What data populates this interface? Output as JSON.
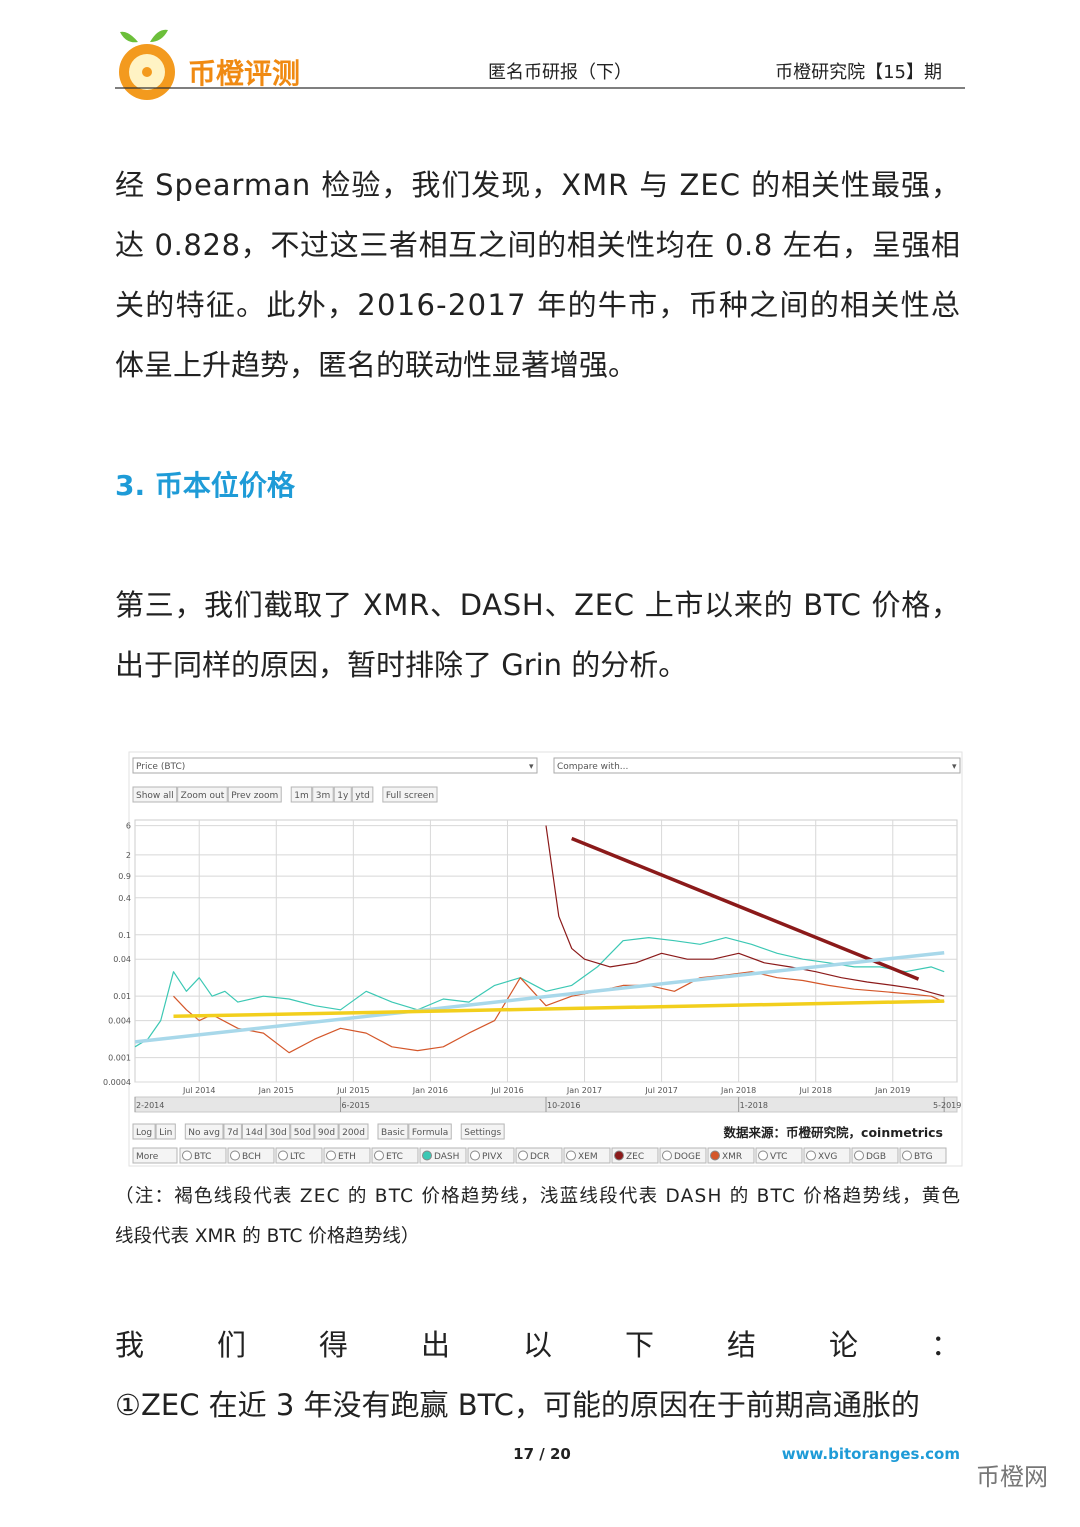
{
  "header": {
    "logo_text": "币橙评测",
    "title": "匿名币研报（下）",
    "issue": "币橙研究院【15】期"
  },
  "paragraphs": [
    [
      "经 Spearman 检验，我们发现，XMR 与 ZEC 的相关性最强，",
      "达 0.828，不过这三者相互之间的相关性均在 0.8 左右，呈强相",
      "关的特征。此外，2016-2017 年的牛市，币种之间的相关性总",
      "体呈上升趋势，匿名的联动性显著增强。"
    ],
    [
      "第三，我们截取了 XMR、DASH、ZEC 上市以来的 BTC 价格，",
      "出于同样的原因，暂时排除了 Grin 的分析。"
    ]
  ],
  "section_heading": "3.  币本位价格",
  "chart_data": {
    "type": "line",
    "log_scale": true,
    "grid": true,
    "selector": "Price (BTC)",
    "compare": "Compare with...",
    "top_buttons": [
      [
        "Show all",
        "Zoom out",
        "Prev zoom"
      ],
      [
        "1m",
        "3m",
        "1y",
        "ytd"
      ],
      [
        "Full screen"
      ]
    ],
    "bottom_buttons": [
      [
        "Log",
        "Lin"
      ],
      [
        "No avg",
        "7d",
        "14d",
        "30d",
        "50d",
        "90d",
        "200d"
      ],
      [
        "Basic",
        "Formula"
      ],
      [
        "Settings"
      ]
    ],
    "more": "More",
    "coins": [
      {
        "name": "BTC"
      },
      {
        "name": "BCH"
      },
      {
        "name": "LTC"
      },
      {
        "name": "ETH"
      },
      {
        "name": "ETC"
      },
      {
        "name": "DASH",
        "color": "#3cc8b4"
      },
      {
        "name": "PIVX"
      },
      {
        "name": "DCR"
      },
      {
        "name": "XEM"
      },
      {
        "name": "ZEC",
        "color": "#8b1a1a"
      },
      {
        "name": "DOGE"
      },
      {
        "name": "XMR",
        "color": "#d4572a"
      },
      {
        "name": "VTC"
      },
      {
        "name": "XVG"
      },
      {
        "name": "DGB"
      },
      {
        "name": "BTG"
      }
    ],
    "source": "数据来源：币橙研究院，coinmetrics",
    "xlim": [
      "2014-02",
      "2019-06"
    ],
    "xticks": [
      {
        "value": "2014-07",
        "label": "Jul 2014"
      },
      {
        "value": "2015-01",
        "label": "Jan 2015"
      },
      {
        "value": "2015-07",
        "label": "Jul 2015"
      },
      {
        "value": "2016-01",
        "label": "Jan 2016"
      },
      {
        "value": "2016-07",
        "label": "Jul 2016"
      },
      {
        "value": "2017-01",
        "label": "Jan 2017"
      },
      {
        "value": "2017-07",
        "label": "Jul 2017"
      },
      {
        "value": "2018-01",
        "label": "Jan 2018"
      },
      {
        "value": "2018-07",
        "label": "Jul 2018"
      },
      {
        "value": "2019-01",
        "label": "Jan 2019"
      }
    ],
    "navigator_ticks": [
      {
        "value": "2014-02",
        "label": "2-2014"
      },
      {
        "value": "2015-06",
        "label": "6-2015"
      },
      {
        "value": "2016-10",
        "label": "10-2016"
      },
      {
        "value": "2018-01",
        "label": "1-2018"
      },
      {
        "value": "2019-05",
        "label": "5-2019"
      }
    ],
    "ylim": [
      0.0004,
      7.4
    ],
    "yticks": [
      6,
      2,
      0.9,
      0.4,
      0.1,
      0.04,
      0.01,
      0.004,
      0.001,
      0.0004
    ],
    "series": [
      {
        "name": "DASH",
        "color": "#3cc8b4",
        "x": [
          "2014-02",
          "2014-03",
          "2014-04",
          "2014-05",
          "2014-06",
          "2014-07",
          "2014-08",
          "2014-09",
          "2014-10",
          "2014-12",
          "2015-02",
          "2015-04",
          "2015-06",
          "2015-08",
          "2015-10",
          "2015-12",
          "2016-02",
          "2016-04",
          "2016-06",
          "2016-08",
          "2016-10",
          "2016-12",
          "2017-02",
          "2017-04",
          "2017-06",
          "2017-08",
          "2017-10",
          "2017-12",
          "2018-02",
          "2018-04",
          "2018-06",
          "2018-08",
          "2018-10",
          "2018-12",
          "2019-02",
          "2019-04",
          "2019-05"
        ],
        "values": [
          0.0015,
          0.002,
          0.004,
          0.025,
          0.012,
          0.02,
          0.01,
          0.012,
          0.008,
          0.01,
          0.009,
          0.007,
          0.006,
          0.012,
          0.008,
          0.006,
          0.009,
          0.008,
          0.015,
          0.02,
          0.012,
          0.015,
          0.03,
          0.08,
          0.09,
          0.08,
          0.07,
          0.09,
          0.07,
          0.05,
          0.04,
          0.035,
          0.03,
          0.03,
          0.025,
          0.03,
          0.025
        ]
      },
      {
        "name": "XMR",
        "color": "#d4572a",
        "x": [
          "2014-05",
          "2014-06",
          "2014-07",
          "2014-08",
          "2014-10",
          "2014-12",
          "2015-02",
          "2015-04",
          "2015-06",
          "2015-08",
          "2015-10",
          "2015-12",
          "2016-02",
          "2016-04",
          "2016-06",
          "2016-08",
          "2016-10",
          "2016-12",
          "2017-02",
          "2017-04",
          "2017-06",
          "2017-08",
          "2017-10",
          "2017-12",
          "2018-02",
          "2018-04",
          "2018-06",
          "2018-08",
          "2018-10",
          "2018-12",
          "2019-02",
          "2019-04",
          "2019-05"
        ],
        "values": [
          0.01,
          0.006,
          0.004,
          0.005,
          0.003,
          0.0025,
          0.0012,
          0.002,
          0.003,
          0.0025,
          0.0015,
          0.0013,
          0.0015,
          0.0025,
          0.004,
          0.02,
          0.007,
          0.01,
          0.012,
          0.015,
          0.015,
          0.012,
          0.02,
          0.022,
          0.025,
          0.02,
          0.018,
          0.015,
          0.013,
          0.012,
          0.011,
          0.01,
          0.008
        ]
      },
      {
        "name": "ZEC",
        "color": "#8b1a1a",
        "x": [
          "2016-10",
          "2016-11",
          "2016-12",
          "2017-01",
          "2017-03",
          "2017-05",
          "2017-07",
          "2017-09",
          "2017-11",
          "2018-01",
          "2018-03",
          "2018-05",
          "2018-07",
          "2018-09",
          "2018-11",
          "2019-01",
          "2019-03",
          "2019-05"
        ],
        "values": [
          6,
          0.2,
          0.06,
          0.04,
          0.03,
          0.035,
          0.05,
          0.04,
          0.04,
          0.05,
          0.035,
          0.03,
          0.025,
          0.02,
          0.017,
          0.015,
          0.013,
          0.01
        ]
      }
    ],
    "trend_lines": [
      {
        "color": "#8b1a1a",
        "x": [
          "2016-12",
          "2019-03"
        ],
        "values": [
          3.7,
          0.019
        ]
      },
      {
        "color": "#a8d8ea",
        "x": [
          "2014-02",
          "2019-05"
        ],
        "values": [
          0.0018,
          0.051
        ]
      },
      {
        "color": "#f2cf1d",
        "x": [
          "2014-05",
          "2019-05"
        ],
        "values": [
          0.0047,
          0.0083
        ]
      }
    ]
  },
  "caption": [
    "（注：褐色线段代表 ZEC 的 BTC 价格趋势线，浅蓝线段代表 DASH 的 BTC 价格趋势线，黄色",
    "线段代表 XMR 的 BTC 价格趋势线）"
  ],
  "conclusion": [
    "我们得出以下结论：",
    "①ZEC 在近 3 年没有跑赢 BTC，可能的原因在于前期高通胀的"
  ],
  "footer": {
    "page": "17 / 20",
    "url": "www.bitoranges.com",
    "watermark": "币橙网"
  }
}
